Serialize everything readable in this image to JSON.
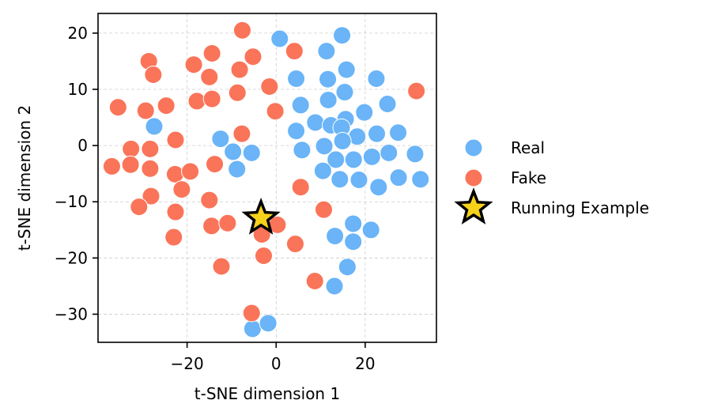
{
  "chart_data": {
    "type": "scatter",
    "xlabel": "t-SNE dimension 1",
    "ylabel": "t-SNE dimension 2",
    "xlim": [
      -40,
      36
    ],
    "ylim": [
      -35,
      23.5
    ],
    "xticks": [
      -20,
      0,
      20
    ],
    "yticks": [
      -30,
      -20,
      -10,
      0,
      10,
      20
    ],
    "xtick_labels": [
      "−20",
      "0",
      "20"
    ],
    "ytick_labels": [
      "−30",
      "−20",
      "−10",
      "0",
      "10",
      "20"
    ],
    "grid": true,
    "legend_position": "right",
    "series": [
      {
        "name": "Real",
        "color": "#6ab4f7",
        "marker": "circle",
        "points": [
          [
            14.8,
            19.6
          ],
          [
            0.8,
            19
          ],
          [
            11.3,
            16.8
          ],
          [
            15.8,
            13.5
          ],
          [
            4.5,
            11.9
          ],
          [
            11.6,
            11.8
          ],
          [
            22.5,
            11.9
          ],
          [
            15.4,
            9.5
          ],
          [
            5.5,
            7.2
          ],
          [
            11.7,
            8.1
          ],
          [
            25,
            7.4
          ],
          [
            19.8,
            5.9
          ],
          [
            15.6,
            4.7
          ],
          [
            8.8,
            4.1
          ],
          [
            12.3,
            3.6
          ],
          [
            4.5,
            2.6
          ],
          [
            14.7,
            3.2
          ],
          [
            18.2,
            1.6
          ],
          [
            22.6,
            2.1
          ],
          [
            27.4,
            2.3
          ],
          [
            -27.4,
            3.4
          ],
          [
            -12.5,
            1.2
          ],
          [
            -9.7,
            -1.1
          ],
          [
            -5.5,
            -1.3
          ],
          [
            -8.8,
            -4.2
          ],
          [
            10.8,
            -0.1
          ],
          [
            14.9,
            0.8
          ],
          [
            5.8,
            -0.8
          ],
          [
            13.4,
            -2.5
          ],
          [
            17.4,
            -2.5
          ],
          [
            21.5,
            -2
          ],
          [
            25.3,
            -1.3
          ],
          [
            31.2,
            -1.5
          ],
          [
            10.5,
            -4.5
          ],
          [
            14.3,
            -6
          ],
          [
            18.6,
            -6.1
          ],
          [
            23,
            -7.4
          ],
          [
            27.5,
            -5.7
          ],
          [
            32.4,
            -6
          ],
          [
            17.3,
            -13.9
          ],
          [
            13.2,
            -16.1
          ],
          [
            17.3,
            -17.1
          ],
          [
            21.3,
            -15
          ],
          [
            16,
            -21.6
          ],
          [
            13.1,
            -25
          ],
          [
            -5.3,
            -32.6
          ],
          [
            -1.8,
            -31.6
          ]
        ]
      },
      {
        "name": "Fake",
        "color": "#fa7459",
        "marker": "circle",
        "points": [
          [
            -7.6,
            20.5
          ],
          [
            -14.4,
            16.4
          ],
          [
            -28.6,
            15
          ],
          [
            -18.5,
            14.4
          ],
          [
            -5.2,
            15.8
          ],
          [
            4.1,
            16.8
          ],
          [
            -27.6,
            12.6
          ],
          [
            -15,
            12.2
          ],
          [
            -8.2,
            13.5
          ],
          [
            -1.5,
            10.5
          ],
          [
            31.5,
            9.7
          ],
          [
            -17.8,
            7.9
          ],
          [
            -14.4,
            8.3
          ],
          [
            -8.7,
            9.4
          ],
          [
            -35.5,
            6.8
          ],
          [
            -29.3,
            6.2
          ],
          [
            -24.7,
            7.1
          ],
          [
            -0.2,
            6.1
          ],
          [
            -7.7,
            2.1
          ],
          [
            -22.6,
            1
          ],
          [
            -32.6,
            -0.6
          ],
          [
            -28.3,
            -0.6
          ],
          [
            -36.9,
            -3.7
          ],
          [
            -32.7,
            -3.4
          ],
          [
            -28.3,
            -4.1
          ],
          [
            -22.7,
            -5.1
          ],
          [
            -19.3,
            -4.6
          ],
          [
            -13.8,
            -3.3
          ],
          [
            -21.2,
            -7.8
          ],
          [
            -28.1,
            -9
          ],
          [
            -15,
            -9.7
          ],
          [
            5.5,
            -7.4
          ],
          [
            -30.8,
            -10.9
          ],
          [
            -22.6,
            -11.8
          ],
          [
            -14.5,
            -14.3
          ],
          [
            -10.9,
            -13.8
          ],
          [
            -3.2,
            -15.8
          ],
          [
            0.3,
            -14.1
          ],
          [
            -23,
            -16.3
          ],
          [
            4.3,
            -17.5
          ],
          [
            -2.8,
            -19.6
          ],
          [
            10.7,
            -11.4
          ],
          [
            -12.3,
            -21.5
          ],
          [
            8.7,
            -24.1
          ],
          [
            -5.5,
            -29.8
          ]
        ]
      },
      {
        "name": "Running Example",
        "color": "#f7d21a",
        "marker": "star",
        "points": [
          [
            -3.4,
            -12.9
          ]
        ]
      }
    ]
  }
}
